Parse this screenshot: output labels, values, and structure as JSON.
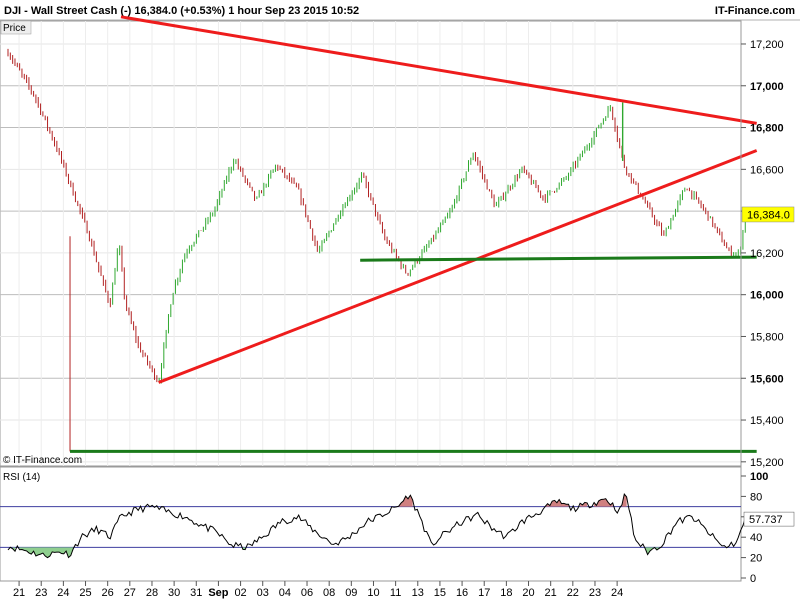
{
  "header": {
    "left": "DJI - Wall Street Cash (-)    16,384.0 (+0.53%)    1 hour   Sep 23 2015 10:52",
    "right": "IT-Finance.com"
  },
  "price_panel": {
    "label": "Price",
    "watermark": "© IT-Finance.com",
    "current_value": "16,384.0"
  },
  "rsi_panel": {
    "label": "RSI (14)",
    "current_value": "57.737"
  },
  "colors": {
    "trendline": "#ee1c1c",
    "support": "#1a7a1a",
    "bar_up": "#2fa82f",
    "bar_down": "#b22222",
    "price_tag": "#ffff00",
    "rsi_line": "#000000",
    "rsi_band": "#3f3fa0",
    "rsi_oversold_fill": "#8fcf8f",
    "rsi_overbought_fill": "#d08080"
  },
  "chart_data": [
    {
      "type": "candlestick",
      "title": "DJI - Wall Street Cash (-)",
      "interval": "1 hour",
      "x_tick_labels": [
        "21",
        "23",
        "24",
        "25",
        "26",
        "27",
        "28",
        "30",
        "31",
        "Sep",
        "02",
        "03",
        "04",
        "06",
        "08",
        "09",
        "10",
        "11",
        "13",
        "15",
        "16",
        "17",
        "18",
        "20",
        "21",
        "22",
        "23",
        "24"
      ],
      "y_tick_labels": [
        "15,200",
        "15,400",
        "15,600",
        "15,800",
        "16,000",
        "16,200",
        "16,400",
        "16,600",
        "16,800",
        "17,000",
        "17,200"
      ],
      "y_major": [
        "15,600",
        "16,000",
        "16,400",
        "16,800",
        "17,000"
      ],
      "ylim": [
        15180,
        17310
      ],
      "series_anchor_points": [
        [
          0,
          17160
        ],
        [
          1.2,
          16950
        ],
        [
          2.2,
          16700
        ],
        [
          3.6,
          16300
        ],
        [
          4.3,
          16050
        ],
        [
          4.6,
          15950
        ],
        [
          5.0,
          16250
        ],
        [
          5.3,
          15950
        ],
        [
          5.9,
          15750
        ],
        [
          6.8,
          15580
        ],
        [
          7.4,
          16000
        ],
        [
          8.0,
          16200
        ],
        [
          9.3,
          16400
        ],
        [
          10.2,
          16650
        ],
        [
          11.2,
          16450
        ],
        [
          12.1,
          16620
        ],
        [
          13.1,
          16500
        ],
        [
          14.0,
          16200
        ],
        [
          15.0,
          16400
        ],
        [
          16.0,
          16570
        ],
        [
          17.0,
          16270
        ],
        [
          18.0,
          16100
        ],
        [
          19.0,
          16240
        ],
        [
          20.0,
          16400
        ],
        [
          21.0,
          16680
        ],
        [
          22.0,
          16420
        ],
        [
          23.2,
          16600
        ],
        [
          24.2,
          16460
        ],
        [
          25.2,
          16560
        ],
        [
          26.2,
          16720
        ],
        [
          27.2,
          16900
        ],
        [
          27.8,
          16620
        ],
        [
          28.6,
          16470
        ],
        [
          29.6,
          16280
        ],
        [
          30.6,
          16520
        ],
        [
          31.6,
          16380
        ],
        [
          32.5,
          16210
        ],
        [
          33.0,
          16190
        ],
        [
          33.3,
          16384
        ]
      ],
      "annotations": [
        {
          "type": "trendline",
          "color": "red",
          "from": [
            5.1,
            17330
          ],
          "to": [
            33.8,
            16820
          ]
        },
        {
          "type": "trendline",
          "color": "red",
          "from": [
            6.8,
            15580
          ],
          "to": [
            33.8,
            16690
          ]
        },
        {
          "type": "horizontal",
          "color": "green",
          "from": [
            15.9,
            16165
          ],
          "to": [
            33.8,
            16180
          ]
        },
        {
          "type": "horizontal",
          "color": "green",
          "from": [
            2.8,
            15250
          ],
          "to": [
            33.8,
            15250
          ]
        }
      ]
    },
    {
      "type": "line",
      "title": "RSI (14)",
      "y_tick_labels": [
        "0",
        "20",
        "40",
        "60",
        "80",
        "100"
      ],
      "ylim": [
        0,
        100
      ],
      "bands": [
        30,
        70
      ],
      "series_anchor_points": [
        [
          0,
          31
        ],
        [
          0.8,
          27
        ],
        [
          1.6,
          22
        ],
        [
          2.4,
          26
        ],
        [
          2.8,
          23
        ],
        [
          3.3,
          40
        ],
        [
          4.0,
          48
        ],
        [
          4.6,
          40
        ],
        [
          5.1,
          60
        ],
        [
          5.8,
          67
        ],
        [
          6.5,
          70
        ],
        [
          7.2,
          65
        ],
        [
          8.0,
          60
        ],
        [
          8.7,
          52
        ],
        [
          9.4,
          45
        ],
        [
          10.1,
          32
        ],
        [
          10.8,
          30
        ],
        [
          11.5,
          40
        ],
        [
          12.3,
          55
        ],
        [
          13.1,
          60
        ],
        [
          13.9,
          45
        ],
        [
          14.7,
          33
        ],
        [
          15.4,
          40
        ],
        [
          16.2,
          55
        ],
        [
          16.9,
          62
        ],
        [
          17.6,
          70
        ],
        [
          18.1,
          82
        ],
        [
          18.6,
          60
        ],
        [
          19.1,
          32
        ],
        [
          19.8,
          45
        ],
        [
          20.5,
          55
        ],
        [
          21.2,
          62
        ],
        [
          21.8,
          50
        ],
        [
          22.5,
          40
        ],
        [
          23.2,
          55
        ],
        [
          24.0,
          65
        ],
        [
          24.8,
          75
        ],
        [
          25.5,
          68
        ],
        [
          26.2,
          72
        ],
        [
          27.0,
          78
        ],
        [
          27.6,
          65
        ],
        [
          27.9,
          84
        ],
        [
          28.3,
          38
        ],
        [
          28.9,
          25
        ],
        [
          29.5,
          33
        ],
        [
          30.2,
          55
        ],
        [
          30.9,
          60
        ],
        [
          31.6,
          45
        ],
        [
          32.3,
          30
        ],
        [
          32.9,
          35
        ],
        [
          33.3,
          57.7
        ]
      ]
    }
  ]
}
